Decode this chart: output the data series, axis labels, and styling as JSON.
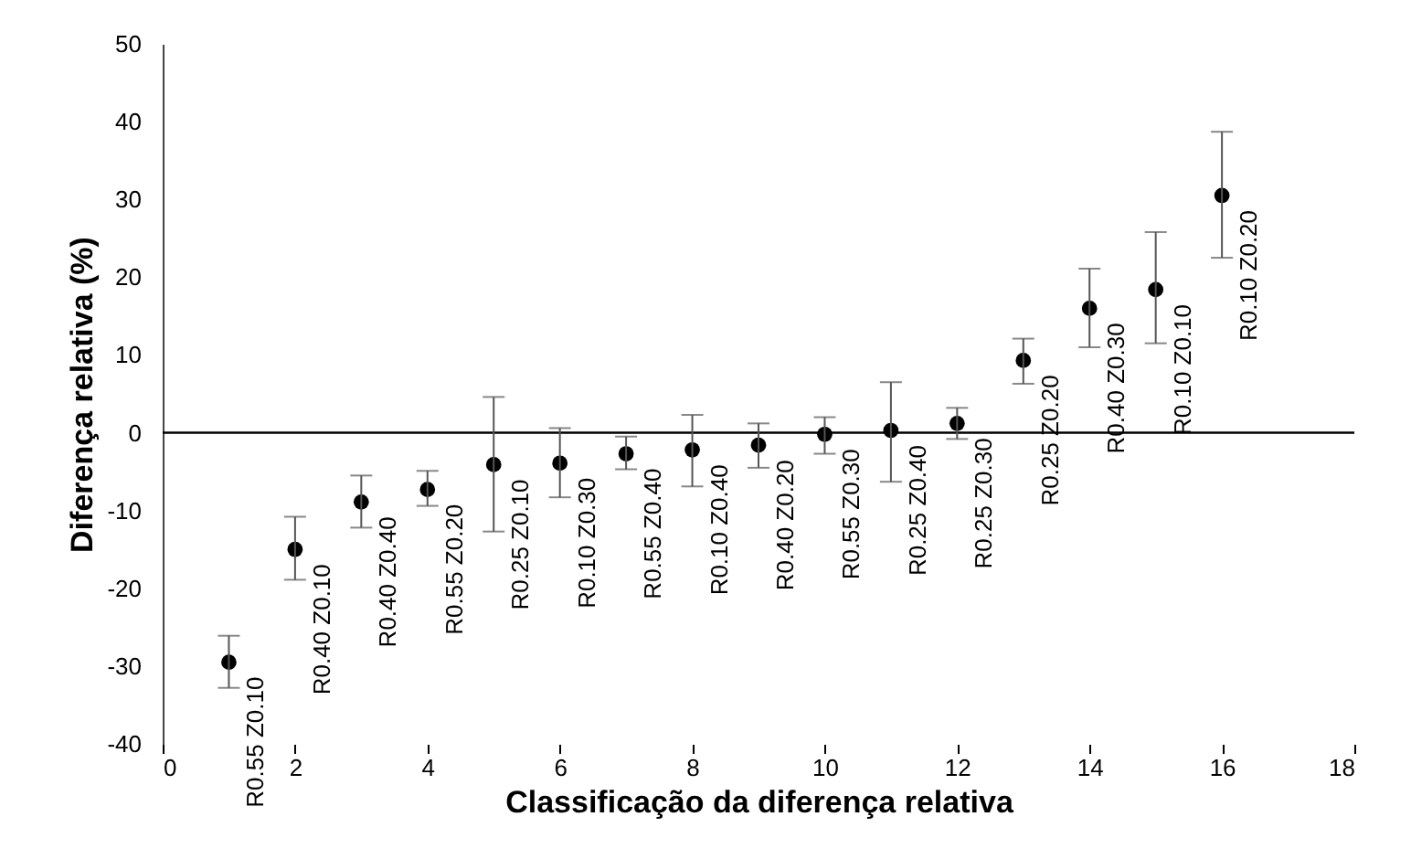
{
  "chart_data": {
    "type": "scatter",
    "xlabel": "Classificação da diferença relativa",
    "ylabel": "Diferença relativa (%)",
    "x": [
      1,
      2,
      3,
      4,
      5,
      6,
      7,
      8,
      9,
      10,
      11,
      12,
      13,
      14,
      15,
      16
    ],
    "series": [
      {
        "color": "#000000",
        "values": [
          -29.5,
          -15.0,
          -8.9,
          -7.3,
          -4.1,
          -3.9,
          -2.7,
          -2.2,
          -1.6,
          -0.2,
          0.3,
          1.2,
          9.3,
          16.0,
          18.4,
          30.5
        ],
        "errors": [
          [
            -32.8,
            -26.1
          ],
          [
            -18.9,
            -10.8
          ],
          [
            -12.2,
            -5.5
          ],
          [
            -9.4,
            -4.9
          ],
          [
            -12.7,
            4.6
          ],
          [
            -8.3,
            0.6
          ],
          [
            -4.7,
            -0.5
          ],
          [
            -6.9,
            2.3
          ],
          [
            -4.5,
            1.2
          ],
          [
            -2.7,
            2.0
          ],
          [
            -6.3,
            6.5
          ],
          [
            -0.8,
            3.2
          ],
          [
            6.3,
            12.1
          ],
          [
            11.0,
            21.1
          ],
          [
            11.5,
            25.8
          ],
          [
            22.5,
            38.7
          ]
        ]
      }
    ],
    "annotations": [
      {
        "text": "R0.55 Z0.10",
        "x": 1,
        "y": -29.5
      },
      {
        "text": "R0.40 Z0.10",
        "x": 2,
        "y": -15.0
      },
      {
        "text": "R0.40 Z0.40",
        "x": 3,
        "y": -8.9
      },
      {
        "text": "R0.55 Z0.20",
        "x": 4,
        "y": -7.3
      },
      {
        "text": "R0.25 Z0.10",
        "x": 5,
        "y": -4.1
      },
      {
        "text": "R0.10 Z0.30",
        "x": 6,
        "y": -3.9
      },
      {
        "text": "R0.55 Z0.40",
        "x": 7,
        "y": -2.7
      },
      {
        "text": "R0.10 Z0.40",
        "x": 8,
        "y": -2.2
      },
      {
        "text": "R0.40 Z0.20",
        "x": 9,
        "y": -1.6
      },
      {
        "text": "R0.55 Z0.30",
        "x": 10,
        "y": -0.2
      },
      {
        "text": "R0.25 Z0.40",
        "x": 11,
        "y": 0.3
      },
      {
        "text": "R0.25 Z0.30",
        "x": 12,
        "y": 1.2
      },
      {
        "text": "R0.25 Z0.20",
        "x": 13,
        "y": 9.3
      },
      {
        "text": "R0.40 Z0.30",
        "x": 14,
        "y": 16.0
      },
      {
        "text": "R0.10 Z0.10",
        "x": 15,
        "y": 18.4
      },
      {
        "text": "R0.10 Z0.20",
        "x": 16,
        "y": 30.5
      }
    ],
    "xlim": [
      0,
      18
    ],
    "xticks": [
      0,
      2,
      4,
      6,
      8,
      10,
      12,
      14,
      16,
      18
    ],
    "ylim": [
      -40,
      50
    ],
    "yticks": [
      -40,
      -30,
      -20,
      -10,
      0,
      10,
      20,
      30,
      40,
      50
    ],
    "ref_lines": [
      {
        "axis": "y",
        "value": 0
      }
    ],
    "marker": "circle",
    "grid": false
  }
}
